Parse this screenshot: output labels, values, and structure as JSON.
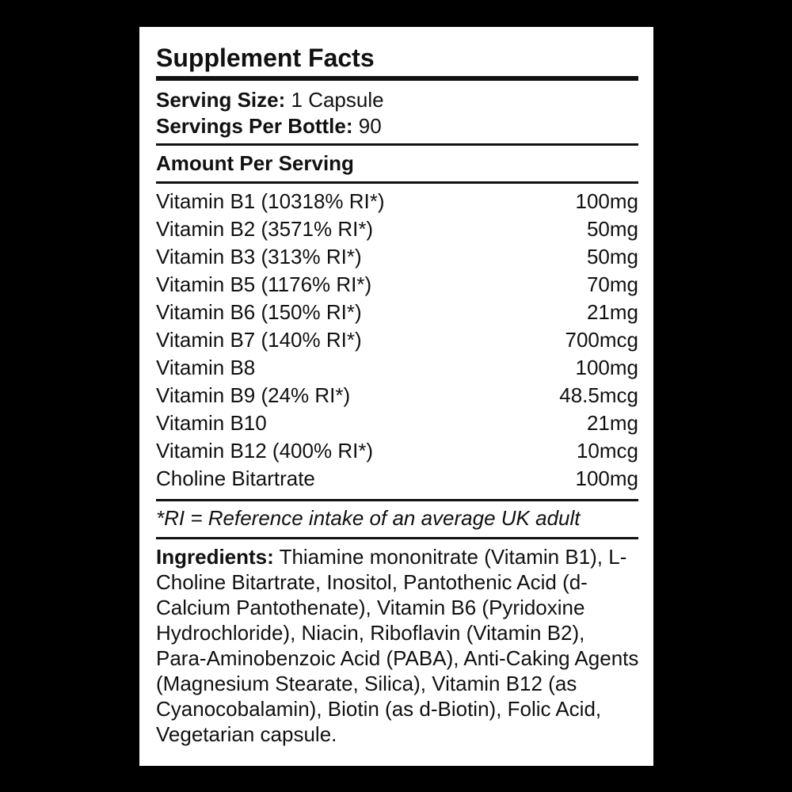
{
  "label": {
    "title": "Supplement Facts",
    "serving_size_label": "Serving Size:",
    "serving_size_value": "1 Capsule",
    "servings_per_bottle_label": "Servings Per Bottle:",
    "servings_per_bottle_value": "90",
    "amount_header": "Amount Per Serving",
    "nutrients": [
      {
        "name": "Vitamin B1 (10318% RI*)",
        "amount": "100mg"
      },
      {
        "name": "Vitamin B2 (3571% RI*)",
        "amount": "50mg"
      },
      {
        "name": "Vitamin B3 (313% RI*)",
        "amount": "50mg"
      },
      {
        "name": "Vitamin B5 (1176% RI*)",
        "amount": "70mg"
      },
      {
        "name": "Vitamin B6 (150% RI*)",
        "amount": "21mg"
      },
      {
        "name": "Vitamin B7 (140% RI*)",
        "amount": "700mcg"
      },
      {
        "name": "Vitamin B8",
        "amount": "100mg"
      },
      {
        "name": "Vitamin B9 (24% RI*)",
        "amount": "48.5mcg"
      },
      {
        "name": "Vitamin B10",
        "amount": "21mg"
      },
      {
        "name": "Vitamin B12 (400% RI*)",
        "amount": "10mcg"
      },
      {
        "name": "Choline Bitartrate",
        "amount": "100mg"
      }
    ],
    "footnote": "*RI = Reference intake of an average UK adult",
    "ingredients_label": "Ingredients:",
    "ingredients_text": "Thiamine mononitrate (Vitamin B1), L-Choline Bitartrate, Inositol, Pantothenic Acid (d-Calcium Pantothenate), Vitamin B6 (Pyridoxine Hydrochloride), Niacin, Riboflavin (Vitamin B2), Para-Aminobenzoic Acid (PABA), Anti-Caking Agents (Magnesium Stearate, Silica), Vitamin B12 (as Cyanocobalamin), Biotin (as d-Biotin), Folic Acid, Vegetarian capsule."
  },
  "colors": {
    "background": "#000000",
    "panel": "#ffffff",
    "text": "#111111"
  }
}
